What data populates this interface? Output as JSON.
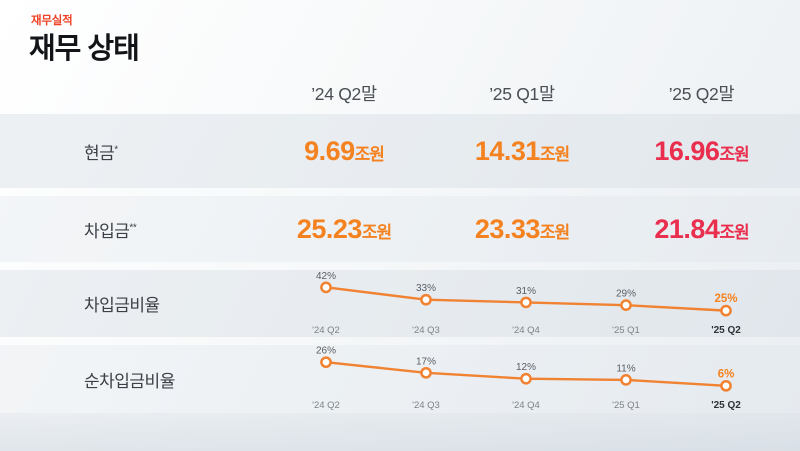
{
  "page": {
    "eyebrow": "재무실적",
    "title": "재무 상태"
  },
  "table": {
    "columns": [
      "’24 Q2말",
      "’25 Q1말",
      "’25 Q2말"
    ],
    "rows": [
      {
        "label": "현금",
        "sup": "*",
        "values": [
          {
            "num": "9.69",
            "unit": "조원",
            "tone": "orange"
          },
          {
            "num": "14.31",
            "unit": "조원",
            "tone": "orange"
          },
          {
            "num": "16.96",
            "unit": "조원",
            "tone": "red"
          }
        ]
      },
      {
        "label": "차입금",
        "sup": "**",
        "values": [
          {
            "num": "25.23",
            "unit": "조원",
            "tone": "orange"
          },
          {
            "num": "23.33",
            "unit": "조원",
            "tone": "orange"
          },
          {
            "num": "21.84",
            "unit": "조원",
            "tone": "red"
          }
        ]
      }
    ]
  },
  "ratio_rows": [
    {
      "label": "차입금비율"
    },
    {
      "label": "순차입금비율"
    }
  ],
  "chart_data": [
    {
      "type": "line",
      "title": "차입금비율",
      "categories": [
        "'24 Q2",
        "'24 Q3",
        "'24 Q4",
        "'25 Q1",
        "'25 Q2"
      ],
      "values": [
        42,
        33,
        31,
        29,
        25
      ],
      "unit": "%",
      "ylim": [
        24,
        43
      ],
      "grid": false,
      "legend": "none",
      "highlight_last": true
    },
    {
      "type": "line",
      "title": "순차입금비율",
      "categories": [
        "'24 Q2",
        "'24 Q3",
        "'24 Q4",
        "'25 Q1",
        "'25 Q2"
      ],
      "values": [
        26,
        17,
        12,
        11,
        6
      ],
      "unit": "%",
      "ylim": [
        5,
        27
      ],
      "grid": false,
      "legend": "none",
      "highlight_last": true
    }
  ],
  "colors": {
    "eyebrow": "#ef4123",
    "accent_orange": "#f58220",
    "accent_red": "#ea2e4e",
    "chart_line": "#f08232",
    "label_gray": "#5a5f66",
    "tick_gray": "#7d828a",
    "tick_dark": "#2e3238"
  }
}
